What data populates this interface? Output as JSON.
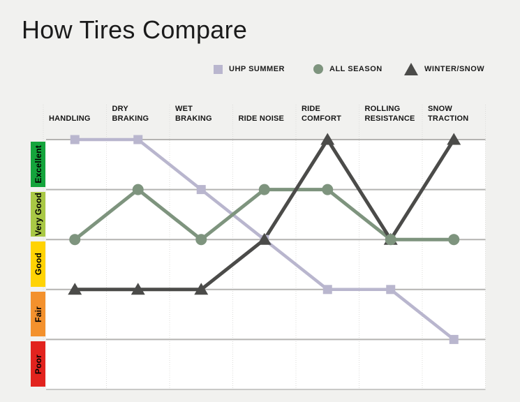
{
  "page": {
    "title": "How Tires Compare",
    "background": "#f1f1ef"
  },
  "legend": [
    {
      "label": "UHP SUMMER",
      "marker": "square-icon",
      "color": "#b9b6ce"
    },
    {
      "label": "ALL SEASON",
      "marker": "circle-icon",
      "color": "#7e947e"
    },
    {
      "label": "WINTER/SNOW",
      "marker": "triangle-icon",
      "color": "#4b4b49"
    }
  ],
  "chart_data": {
    "type": "line",
    "title": "How Tires Compare",
    "categories": [
      "HANDLING",
      "DRY BRAKING",
      "WET BRAKING",
      "RIDE NOISE",
      "RIDE COMFORT",
      "ROLLING RESISTANCE",
      "SNOW TRACTION"
    ],
    "rating_scale": [
      {
        "label": "Excellent",
        "value": 5,
        "color": "#14a43c"
      },
      {
        "label": "Very Good",
        "value": 4,
        "color": "#a9c845"
      },
      {
        "label": "Good",
        "value": 3,
        "color": "#ffd303"
      },
      {
        "label": "Fair",
        "value": 2,
        "color": "#f3912d"
      },
      {
        "label": "Poor",
        "value": 1,
        "color": "#e2231e"
      }
    ],
    "series": [
      {
        "name": "UHP SUMMER",
        "marker": "square",
        "color": "#b9b6ce",
        "values": [
          5,
          5,
          4,
          3,
          2,
          2,
          1
        ],
        "ratings": [
          "Excellent",
          "Excellent",
          "Very Good",
          "Good",
          "Fair",
          "Fair",
          "Poor"
        ]
      },
      {
        "name": "ALL SEASON",
        "marker": "circle",
        "color": "#7e947e",
        "values": [
          3,
          4,
          3,
          4,
          4,
          3,
          3
        ],
        "ratings": [
          "Good",
          "Very Good",
          "Good",
          "Very Good",
          "Very Good",
          "Good",
          "Good"
        ]
      },
      {
        "name": "WINTER/SNOW",
        "marker": "triangle",
        "color": "#4b4b49",
        "values": [
          2,
          2,
          2,
          3,
          5,
          3,
          5
        ],
        "ratings": [
          "Fair",
          "Fair",
          "Fair",
          "Good",
          "Excellent",
          "Good",
          "Excellent"
        ]
      }
    ],
    "ylim": [
      1,
      5
    ],
    "grid": true,
    "legend_position": "top-right",
    "gridline_color": "#b4b3b1",
    "plot_background": "#ffffff"
  }
}
